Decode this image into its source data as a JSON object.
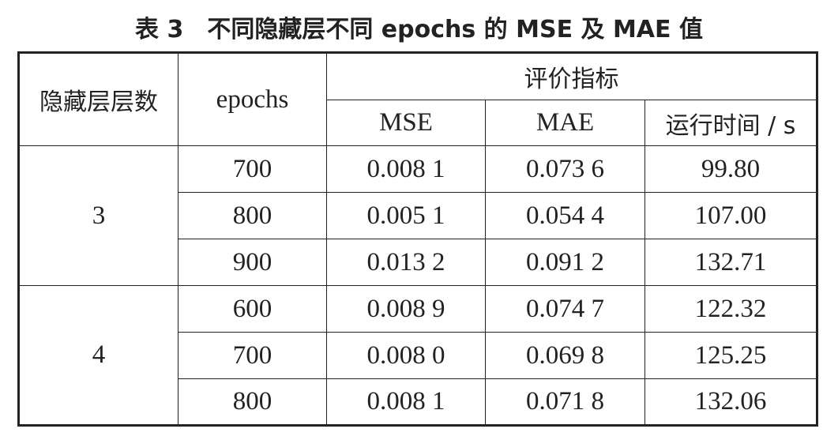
{
  "title": "表 3　不同隐藏层不同 epochs 的 MSE 及 MAE 值",
  "table": {
    "header": {
      "layers": "隐藏层层数",
      "epochs": "epochs",
      "metrics": "评价指标",
      "columns": [
        "MSE",
        "MAE",
        "运行时间 / s"
      ]
    },
    "groups": [
      {
        "layers": "3",
        "rows": [
          [
            "700",
            "0.008 1",
            "0.073 6",
            "99.80"
          ],
          [
            "800",
            "0.005 1",
            "0.054 4",
            "107.00"
          ],
          [
            "900",
            "0.013 2",
            "0.091 2",
            "132.71"
          ]
        ]
      },
      {
        "layers": "4",
        "rows": [
          [
            "600",
            "0.008 9",
            "0.074 7",
            "122.32"
          ],
          [
            "700",
            "0.008 0",
            "0.069 8",
            "125.25"
          ],
          [
            "800",
            "0.008 1",
            "0.071 8",
            "132.06"
          ]
        ]
      }
    ]
  }
}
